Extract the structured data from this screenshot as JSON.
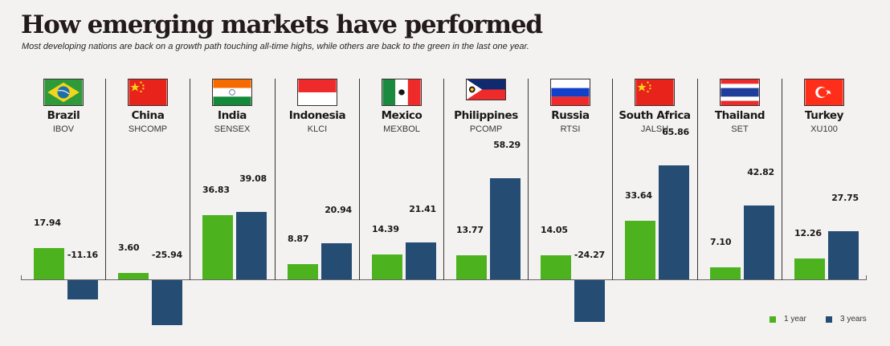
{
  "header": {
    "title": "How emerging markets have performed",
    "subtitle": "Most developing nations are back on a growth path touching all-time highs, while others are back to the green in the last one year."
  },
  "colors": {
    "one_year": "#4cb31e",
    "three_years": "#254d74",
    "background": "#f3f2f1"
  },
  "legend": {
    "items": [
      {
        "label": "1 year",
        "color": "#4cb31e"
      },
      {
        "label": "3 years",
        "color": "#254d74"
      }
    ]
  },
  "countries": [
    {
      "name": "Brazil",
      "index": "IBOV",
      "flag": "brazil-flag",
      "one_year": "17.94",
      "three_years": "-11.16"
    },
    {
      "name": "China",
      "index": "SHCOMP",
      "flag": "china-flag",
      "one_year": "3.60",
      "three_years": "-25.94"
    },
    {
      "name": "India",
      "index": "SENSEX",
      "flag": "india-flag",
      "one_year": "36.83",
      "three_years": "39.08"
    },
    {
      "name": "Indonesia",
      "index": "KLCI",
      "flag": "indonesia-flag",
      "one_year": "8.87",
      "three_years": "20.94"
    },
    {
      "name": "Mexico",
      "index": "MEXBOL",
      "flag": "mexico-flag",
      "one_year": "14.39",
      "three_years": "21.41"
    },
    {
      "name": "Philippines",
      "index": "PCOMP",
      "flag": "philippines-flag",
      "one_year": "13.77",
      "three_years": "58.29"
    },
    {
      "name": "Russia",
      "index": "RTSI",
      "flag": "russia-flag",
      "one_year": "14.05",
      "three_years": "-24.27"
    },
    {
      "name": "South Africa",
      "index": "JALSH",
      "flag": "china-flag",
      "one_year": "33.64",
      "three_years": "65.86"
    },
    {
      "name": "Thailand",
      "index": "SET",
      "flag": "thailand-flag",
      "one_year": "7.10",
      "three_years": "42.82"
    },
    {
      "name": "Turkey",
      "index": "XU100",
      "flag": "turkey-flag",
      "one_year": "12.26",
      "three_years": "27.75"
    }
  ],
  "chart_data": {
    "type": "bar",
    "title": "How emerging markets have performed",
    "subtitle": "Most developing nations are back on a growth path touching all-time highs, while others are back to the green in the last one year.",
    "categories": [
      "Brazil (IBOV)",
      "China (SHCOMP)",
      "India (SENSEX)",
      "Indonesia (KLCI)",
      "Mexico (MEXBOL)",
      "Philippines (PCOMP)",
      "Russia (RTSI)",
      "South Africa (JALSH)",
      "Thailand (SET)",
      "Turkey (XU100)"
    ],
    "series": [
      {
        "name": "1 year",
        "color": "#4cb31e",
        "values": [
          17.94,
          3.6,
          36.83,
          8.87,
          14.39,
          13.77,
          14.05,
          33.64,
          7.1,
          12.26
        ]
      },
      {
        "name": "3 years",
        "color": "#254d74",
        "values": [
          -11.16,
          -25.94,
          39.08,
          20.94,
          21.41,
          58.29,
          -24.27,
          65.86,
          42.82,
          27.75
        ]
      }
    ],
    "xlabel": "",
    "ylabel": "",
    "ylim": [
      -27,
      70
    ],
    "grid": false,
    "data_labels": true,
    "legend_position": "bottom-right"
  }
}
